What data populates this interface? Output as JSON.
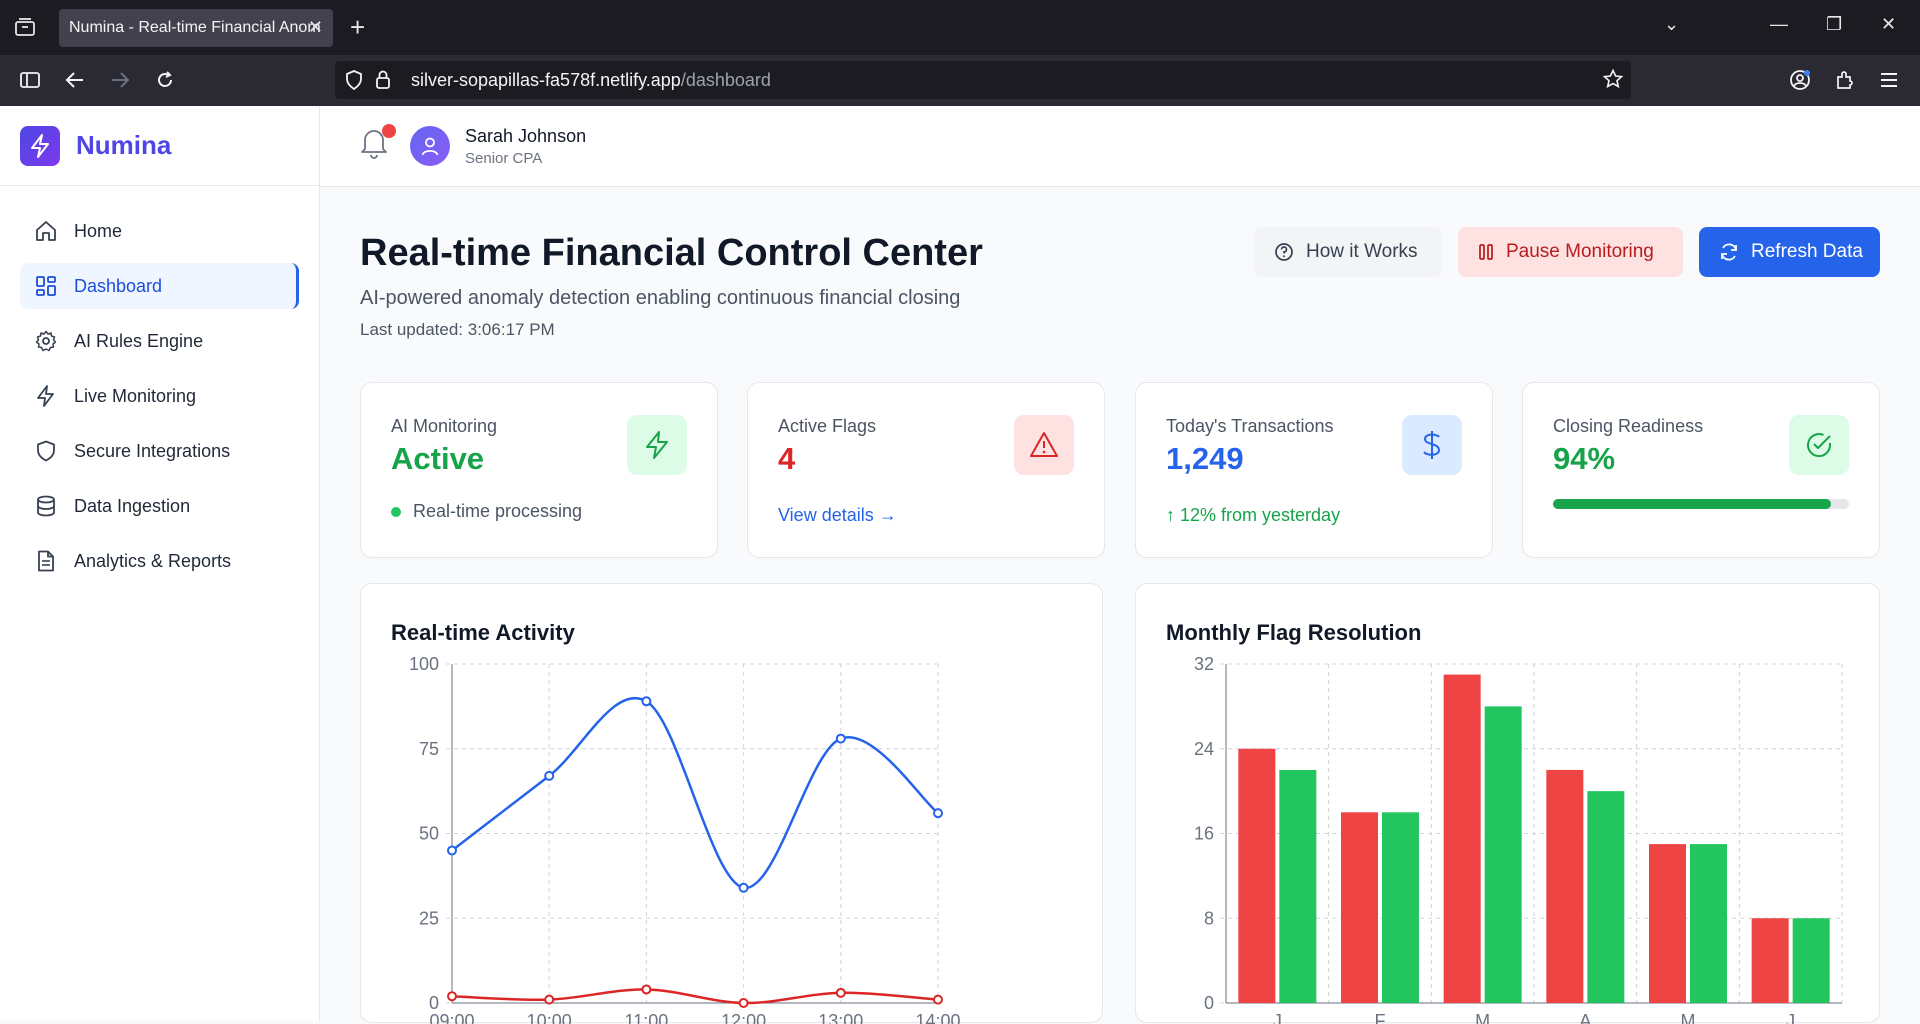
{
  "browser": {
    "tab_title": "Numina - Real-time Financial Anom",
    "url_host": "silver-sopapillas-fa578f.netlify.app",
    "url_path": "/dashboard"
  },
  "brand": {
    "name": "Numina"
  },
  "sidebar": {
    "items": [
      {
        "label": "Home",
        "icon": "home-icon",
        "active": false
      },
      {
        "label": "Dashboard",
        "icon": "dashboard-icon",
        "active": true
      },
      {
        "label": "AI Rules Engine",
        "icon": "gear-icon",
        "active": false
      },
      {
        "label": "Live Monitoring",
        "icon": "bolt-icon",
        "active": false
      },
      {
        "label": "Secure Integrations",
        "icon": "shield-icon",
        "active": false
      },
      {
        "label": "Data Ingestion",
        "icon": "database-icon",
        "active": false
      },
      {
        "label": "Analytics & Reports",
        "icon": "document-icon",
        "active": false
      }
    ]
  },
  "user": {
    "name": "Sarah Johnson",
    "role": "Senior CPA"
  },
  "page": {
    "title": "Real-time Financial Control Center",
    "subtitle": "AI-powered anomaly detection enabling continuous financial closing",
    "last_updated": "Last updated: 3:06:17 PM"
  },
  "actions": {
    "how": "How it Works",
    "pause": "Pause Monitoring",
    "refresh": "Refresh Data"
  },
  "stats": [
    {
      "label": "AI Monitoring",
      "value": "Active",
      "footer": "Real-time processing",
      "color": "#16a34a",
      "icon": "bolt-icon"
    },
    {
      "label": "Active Flags",
      "value": "4",
      "footer": "View details →",
      "color": "#dc2626",
      "icon": "warning-icon"
    },
    {
      "label": "Today's Transactions",
      "value": "1,249",
      "footer": "↑ 12% from yesterday",
      "color": "#2563eb",
      "icon": "dollar-icon"
    },
    {
      "label": "Closing Readiness",
      "value": "94%",
      "progress": 0.94,
      "color": "#16a34a",
      "icon": "check-circle-icon"
    }
  ],
  "colors": {
    "primary": "#2563eb",
    "red": "#ef4444",
    "green": "#22c55e"
  },
  "chart_data": [
    {
      "type": "line",
      "title": "Real-time Activity",
      "x": [
        "09:00",
        "10:00",
        "11:00",
        "12:00",
        "13:00",
        "14:00"
      ],
      "ylim": [
        0,
        100
      ],
      "yticks": [
        "0",
        "25",
        "50",
        "75",
        "100"
      ],
      "grid": true,
      "series": [
        {
          "color": "#2563eb",
          "values": [
            45,
            67,
            89,
            34,
            78,
            56
          ]
        },
        {
          "color": "#dc2626",
          "values": [
            2,
            1,
            4,
            0,
            3,
            1
          ]
        }
      ]
    },
    {
      "type": "bar",
      "title": "Monthly Flag Resolution",
      "categories": [
        "J",
        "F",
        "M",
        "A",
        "M",
        "J"
      ],
      "ylim": [
        0,
        32
      ],
      "yticks": [
        "0",
        "8",
        "16",
        "24",
        "32"
      ],
      "grid": true,
      "series": [
        {
          "color": "#ef4444",
          "values": [
            24,
            18,
            31,
            22,
            15,
            8
          ]
        },
        {
          "color": "#22c55e",
          "values": [
            22,
            18,
            28,
            20,
            15,
            8
          ]
        }
      ]
    }
  ]
}
